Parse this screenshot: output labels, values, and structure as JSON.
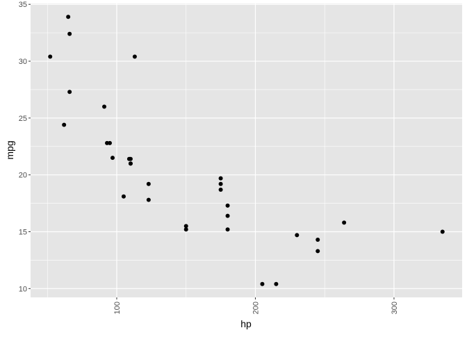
{
  "chart_data": {
    "type": "scatter",
    "xlabel": "hp",
    "ylabel": "mpg",
    "xlim": [
      37.85,
      349.15
    ],
    "ylim": [
      9.225,
      35.075
    ],
    "x_ticks": [
      100,
      200,
      300
    ],
    "y_ticks": [
      10,
      15,
      20,
      25,
      30,
      35
    ],
    "grid": true,
    "colors": {
      "panel": "#e5e5e5",
      "grid": "#ffffff",
      "point": "#000000",
      "text": "#4d4d4d"
    },
    "points": [
      [
        110,
        21.0
      ],
      [
        110,
        21.0
      ],
      [
        93,
        22.8
      ],
      [
        110,
        21.4
      ],
      [
        175,
        18.7
      ],
      [
        105,
        18.1
      ],
      [
        245,
        14.3
      ],
      [
        62,
        24.4
      ],
      [
        95,
        22.8
      ],
      [
        123,
        19.2
      ],
      [
        123,
        17.8
      ],
      [
        180,
        16.4
      ],
      [
        180,
        17.3
      ],
      [
        180,
        15.2
      ],
      [
        205,
        10.4
      ],
      [
        215,
        10.4
      ],
      [
        230,
        14.7
      ],
      [
        66,
        32.4
      ],
      [
        52,
        30.4
      ],
      [
        65,
        33.9
      ],
      [
        97,
        21.5
      ],
      [
        150,
        15.5
      ],
      [
        150,
        15.2
      ],
      [
        245,
        13.3
      ],
      [
        175,
        19.2
      ],
      [
        66,
        27.3
      ],
      [
        91,
        26.0
      ],
      [
        113,
        30.4
      ],
      [
        264,
        15.8
      ],
      [
        175,
        19.7
      ],
      [
        335,
        15.0
      ],
      [
        109,
        21.4
      ]
    ]
  }
}
